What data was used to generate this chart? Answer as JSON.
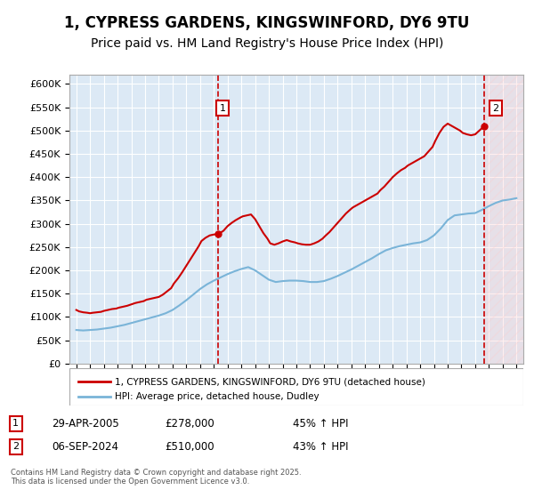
{
  "title": "1, CYPRESS GARDENS, KINGSWINFORD, DY6 9TU",
  "subtitle": "Price paid vs. HM Land Registry's House Price Index (HPI)",
  "title_fontsize": 12,
  "subtitle_fontsize": 10,
  "background_color": "#ffffff",
  "plot_bg_color": "#dce9f5",
  "grid_color": "#ffffff",
  "ylim": [
    0,
    620000
  ],
  "yticks": [
    0,
    50000,
    100000,
    150000,
    200000,
    250000,
    300000,
    350000,
    400000,
    450000,
    500000,
    550000,
    600000
  ],
  "xlim_start": 1994.5,
  "xlim_end": 2027.5,
  "sale1_x": 2005.33,
  "sale1_y": 278000,
  "sale1_label": "1",
  "sale2_x": 2024.67,
  "sale2_y": 510000,
  "sale2_label": "2",
  "red_line_color": "#cc0000",
  "blue_line_color": "#7ab4d8",
  "hatch_color": "#f5b8b8",
  "legend_label_red": "1, CYPRESS GARDENS, KINGSWINFORD, DY6 9TU (detached house)",
  "legend_label_blue": "HPI: Average price, detached house, Dudley",
  "annotation1_date": "29-APR-2005",
  "annotation1_price": "£278,000",
  "annotation1_hpi": "45% ↑ HPI",
  "annotation2_date": "06-SEP-2024",
  "annotation2_price": "£510,000",
  "annotation2_hpi": "43% ↑ HPI",
  "footer": "Contains HM Land Registry data © Crown copyright and database right 2025.\nThis data is licensed under the Open Government Licence v3.0.",
  "red_line": {
    "years": [
      1995.0,
      1995.2,
      1995.5,
      1995.8,
      1996.0,
      1996.2,
      1996.5,
      1996.8,
      1997.0,
      1997.3,
      1997.6,
      1997.9,
      1998.1,
      1998.4,
      1998.7,
      1999.0,
      1999.3,
      1999.6,
      1999.9,
      2000.1,
      2000.4,
      2000.7,
      2001.0,
      2001.3,
      2001.6,
      2001.9,
      2002.1,
      2002.4,
      2002.7,
      2003.0,
      2003.3,
      2003.6,
      2003.9,
      2004.1,
      2004.4,
      2004.7,
      2005.0,
      2005.33,
      2005.7,
      2006.0,
      2006.3,
      2006.6,
      2006.9,
      2007.1,
      2007.4,
      2007.7,
      2008.0,
      2008.3,
      2008.6,
      2008.9,
      2009.1,
      2009.4,
      2009.7,
      2010.0,
      2010.3,
      2010.6,
      2010.9,
      2011.1,
      2011.4,
      2011.7,
      2012.0,
      2012.3,
      2012.6,
      2012.9,
      2013.1,
      2013.4,
      2013.7,
      2014.0,
      2014.3,
      2014.6,
      2014.9,
      2015.1,
      2015.4,
      2015.7,
      2016.0,
      2016.3,
      2016.6,
      2016.9,
      2017.1,
      2017.4,
      2017.7,
      2018.0,
      2018.3,
      2018.6,
      2018.9,
      2019.1,
      2019.4,
      2019.7,
      2020.0,
      2020.3,
      2020.6,
      2020.9,
      2021.1,
      2021.4,
      2021.7,
      2022.0,
      2022.3,
      2022.6,
      2022.9,
      2023.1,
      2023.4,
      2023.7,
      2024.0,
      2024.3,
      2024.67
    ],
    "values": [
      115000,
      112000,
      110000,
      109000,
      108000,
      109000,
      110000,
      111000,
      113000,
      115000,
      117000,
      118000,
      120000,
      122000,
      124000,
      127000,
      130000,
      132000,
      134000,
      137000,
      139000,
      141000,
      143000,
      148000,
      155000,
      162000,
      172000,
      183000,
      196000,
      210000,
      224000,
      238000,
      252000,
      263000,
      270000,
      275000,
      277000,
      278000,
      285000,
      295000,
      302000,
      308000,
      313000,
      316000,
      318000,
      320000,
      310000,
      295000,
      280000,
      268000,
      258000,
      255000,
      258000,
      262000,
      265000,
      262000,
      260000,
      258000,
      256000,
      255000,
      255000,
      258000,
      262000,
      268000,
      274000,
      282000,
      292000,
      302000,
      312000,
      322000,
      330000,
      335000,
      340000,
      345000,
      350000,
      355000,
      360000,
      365000,
      372000,
      380000,
      390000,
      400000,
      408000,
      415000,
      420000,
      425000,
      430000,
      435000,
      440000,
      445000,
      455000,
      465000,
      478000,
      495000,
      508000,
      515000,
      510000,
      505000,
      500000,
      495000,
      492000,
      490000,
      492000,
      500000,
      510000
    ]
  },
  "blue_line": {
    "years": [
      1995.0,
      1995.5,
      1996.0,
      1996.5,
      1997.0,
      1997.5,
      1998.0,
      1998.5,
      1999.0,
      1999.5,
      2000.0,
      2000.5,
      2001.0,
      2001.5,
      2002.0,
      2002.5,
      2003.0,
      2003.5,
      2004.0,
      2004.5,
      2005.0,
      2005.5,
      2006.0,
      2006.5,
      2007.0,
      2007.5,
      2008.0,
      2008.5,
      2009.0,
      2009.5,
      2010.0,
      2010.5,
      2011.0,
      2011.5,
      2012.0,
      2012.5,
      2013.0,
      2013.5,
      2014.0,
      2014.5,
      2015.0,
      2015.5,
      2016.0,
      2016.5,
      2017.0,
      2017.5,
      2018.0,
      2018.5,
      2019.0,
      2019.5,
      2020.0,
      2020.5,
      2021.0,
      2021.5,
      2022.0,
      2022.5,
      2023.0,
      2023.5,
      2024.0,
      2024.5,
      2025.0,
      2025.5,
      2026.0,
      2026.5,
      2027.0
    ],
    "values": [
      72000,
      71000,
      72000,
      73000,
      75000,
      77000,
      80000,
      83000,
      87000,
      91000,
      95000,
      99000,
      103000,
      108000,
      115000,
      125000,
      136000,
      148000,
      160000,
      170000,
      178000,
      185000,
      192000,
      198000,
      203000,
      207000,
      200000,
      190000,
      180000,
      175000,
      177000,
      178000,
      178000,
      177000,
      175000,
      175000,
      177000,
      182000,
      188000,
      195000,
      202000,
      210000,
      218000,
      226000,
      235000,
      243000,
      248000,
      252000,
      255000,
      258000,
      260000,
      265000,
      275000,
      290000,
      308000,
      318000,
      320000,
      322000,
      323000,
      330000,
      338000,
      345000,
      350000,
      352000,
      355000
    ]
  }
}
